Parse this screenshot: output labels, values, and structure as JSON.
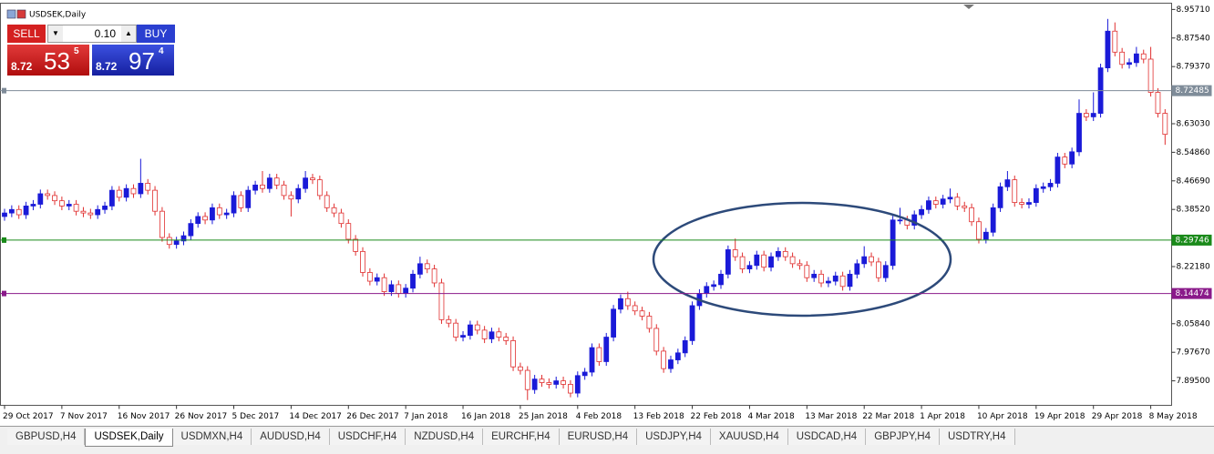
{
  "symbol_label": "USDSEK,Daily",
  "trade_panel": {
    "sell": "SELL",
    "buy": "BUY",
    "lot": "0.10",
    "sell_quote": [
      "8.72",
      "53",
      "5"
    ],
    "buy_quote": [
      "8.72",
      "97",
      "4"
    ]
  },
  "tabs": [
    "GBPUSD,H4",
    "USDSEK,Daily",
    "USDMXN,H4",
    "AUDUSD,H4",
    "USDCHF,H4",
    "NZDUSD,H4",
    "EURCHF,H4",
    "EURUSD,H4",
    "USDJPY,H4",
    "XAUUSD,H4",
    "USDCAD,H4",
    "GBPJPY,H4",
    "USDTRY,H4"
  ],
  "active_tab": 1,
  "chart_data": {
    "type": "candlestick",
    "up_color": "#1a1ad8",
    "down_color": "#e03030",
    "ylim": [
      7.825,
      8.975
    ],
    "yticks": [
      {
        "value": 8.9571,
        "label": "8.95710"
      },
      {
        "value": 8.8754,
        "label": "8.87540"
      },
      {
        "value": 8.7937,
        "label": "8.79370"
      },
      {
        "value": 8.6303,
        "label": "8.63030"
      },
      {
        "value": 8.5486,
        "label": "8.54860"
      },
      {
        "value": 8.4669,
        "label": "8.46690"
      },
      {
        "value": 8.3852,
        "label": "8.38520"
      },
      {
        "value": 8.2218,
        "label": "8.22180"
      },
      {
        "value": 8.0584,
        "label": "8.05840"
      },
      {
        "value": 7.9767,
        "label": "7.97670"
      },
      {
        "value": 7.895,
        "label": "7.89500"
      }
    ],
    "hlines": [
      {
        "value": 8.72485,
        "color": "#7f8c99"
      },
      {
        "value": 8.29746,
        "color": "#1a8a1a"
      },
      {
        "value": 8.14474,
        "color": "#8a1a8a"
      }
    ],
    "categories": [
      "29 Oct 2017",
      null,
      null,
      null,
      null,
      null,
      null,
      null,
      "7 Nov 2017",
      null,
      null,
      null,
      null,
      null,
      null,
      null,
      "16 Nov 2017",
      null,
      null,
      null,
      null,
      null,
      null,
      null,
      "26 Nov 2017",
      null,
      null,
      null,
      null,
      null,
      null,
      null,
      "5 Dec 2017",
      null,
      null,
      null,
      null,
      null,
      null,
      null,
      "14 Dec 2017",
      null,
      null,
      null,
      null,
      null,
      null,
      null,
      "26 Dec 2017",
      null,
      null,
      null,
      null,
      null,
      null,
      null,
      "7 Jan 2018",
      null,
      null,
      null,
      null,
      null,
      null,
      null,
      "16 Jan 2018",
      null,
      null,
      null,
      null,
      null,
      null,
      null,
      "25 Jan 2018",
      null,
      null,
      null,
      null,
      null,
      null,
      null,
      "4 Feb 2018",
      null,
      null,
      null,
      null,
      null,
      null,
      null,
      "13 Feb 2018",
      null,
      null,
      null,
      null,
      null,
      null,
      null,
      "22 Feb 2018",
      null,
      null,
      null,
      null,
      null,
      null,
      null,
      "4 Mar 2018",
      null,
      null,
      null,
      null,
      null,
      null,
      null,
      "13 Mar 2018",
      null,
      null,
      null,
      null,
      null,
      null,
      null,
      "22 Mar 2018",
      null,
      null,
      null,
      null,
      null,
      null,
      null,
      "1 Apr 2018",
      null,
      null,
      null,
      null,
      null,
      null,
      null,
      "10 Apr 2018",
      null,
      null,
      null,
      null,
      null,
      null,
      null,
      "19 Apr 2018",
      null,
      null,
      null,
      null,
      null,
      null,
      null,
      "29 Apr 2018",
      null,
      null,
      null,
      null,
      null,
      null,
      null,
      "8 May 2018",
      null,
      null
    ],
    "open": [
      8.365,
      8.375,
      8.385,
      8.37,
      8.395,
      8.4,
      8.43,
      8.425,
      8.41,
      8.395,
      8.4,
      8.38,
      8.375,
      8.37,
      8.385,
      8.395,
      8.44,
      8.42,
      8.445,
      8.43,
      8.46,
      8.44,
      8.38,
      8.305,
      8.285,
      8.295,
      8.31,
      8.345,
      8.365,
      8.355,
      8.39,
      8.37,
      8.375,
      8.425,
      8.39,
      8.44,
      8.455,
      8.445,
      8.475,
      8.455,
      8.425,
      8.415,
      8.445,
      8.475,
      8.47,
      8.425,
      8.39,
      8.375,
      8.345,
      8.3,
      8.265,
      8.205,
      8.18,
      8.19,
      8.15,
      8.17,
      8.145,
      8.16,
      8.2,
      8.23,
      8.215,
      8.175,
      8.07,
      8.06,
      8.02,
      8.025,
      8.055,
      8.04,
      8.015,
      8.035,
      8.02,
      8.01,
      7.935,
      7.925,
      7.87,
      7.9,
      7.89,
      7.885,
      7.895,
      7.885,
      7.86,
      7.91,
      7.92,
      7.99,
      7.95,
      8.02,
      8.1,
      8.13,
      8.11,
      8.095,
      8.08,
      8.045,
      7.98,
      7.93,
      7.955,
      7.975,
      8.01,
      8.11,
      8.145,
      8.165,
      8.17,
      8.2,
      8.27,
      8.25,
      8.215,
      8.225,
      8.255,
      8.22,
      8.25,
      8.265,
      8.25,
      8.23,
      8.225,
      8.19,
      8.2,
      8.175,
      8.18,
      8.195,
      8.165,
      8.2,
      8.23,
      8.25,
      8.235,
      8.19,
      8.225,
      8.355,
      8.355,
      8.34,
      8.37,
      8.385,
      8.41,
      8.4,
      8.415,
      8.42,
      8.395,
      8.39,
      8.35,
      8.3,
      8.32,
      8.39,
      8.45,
      8.47,
      8.405,
      8.4,
      8.405,
      8.445,
      8.45,
      8.46,
      8.535,
      8.515,
      8.55,
      8.66,
      8.65,
      8.66,
      8.79,
      8.895,
      8.835,
      8.8,
      8.805,
      8.83,
      8.815,
      8.72,
      8.66
    ],
    "high": [
      8.387,
      8.397,
      8.397,
      8.407,
      8.412,
      8.442,
      8.442,
      8.437,
      8.422,
      8.412,
      8.412,
      8.392,
      8.387,
      8.397,
      8.407,
      8.452,
      8.452,
      8.457,
      8.457,
      8.53,
      8.472,
      8.452,
      8.392,
      8.317,
      8.307,
      8.322,
      8.357,
      8.377,
      8.377,
      8.402,
      8.402,
      8.387,
      8.437,
      8.437,
      8.452,
      8.467,
      8.495,
      8.487,
      8.487,
      8.467,
      8.437,
      8.457,
      8.495,
      8.487,
      8.482,
      8.437,
      8.402,
      8.387,
      8.357,
      8.312,
      8.277,
      8.217,
      8.202,
      8.202,
      8.182,
      8.182,
      8.172,
      8.212,
      8.25,
      8.242,
      8.227,
      8.187,
      8.082,
      8.072,
      8.037,
      8.067,
      8.067,
      8.052,
      8.047,
      8.047,
      8.032,
      8.022,
      7.947,
      7.937,
      7.912,
      7.912,
      7.902,
      7.907,
      7.907,
      7.897,
      7.922,
      7.932,
      8.002,
      8.002,
      8.032,
      8.112,
      8.142,
      8.15,
      8.122,
      8.107,
      8.092,
      8.057,
      7.992,
      7.967,
      7.987,
      8.022,
      8.122,
      8.157,
      8.177,
      8.182,
      8.212,
      8.282,
      8.302,
      8.262,
      8.237,
      8.267,
      8.267,
      8.262,
      8.277,
      8.277,
      8.262,
      8.242,
      8.237,
      8.212,
      8.212,
      8.192,
      8.207,
      8.207,
      8.212,
      8.242,
      8.28,
      8.262,
      8.247,
      8.237,
      8.367,
      8.39,
      8.367,
      8.382,
      8.397,
      8.422,
      8.422,
      8.427,
      8.445,
      8.432,
      8.407,
      8.402,
      8.362,
      8.332,
      8.402,
      8.462,
      8.495,
      8.482,
      8.417,
      8.417,
      8.457,
      8.462,
      8.472,
      8.547,
      8.547,
      8.562,
      8.7,
      8.672,
      8.72,
      8.802,
      8.93,
      8.92,
      8.847,
      8.817,
      8.85,
      8.842,
      8.85,
      8.732,
      8.672
    ],
    "low": [
      8.353,
      8.363,
      8.358,
      8.358,
      8.383,
      8.388,
      8.413,
      8.398,
      8.383,
      8.383,
      8.368,
      8.363,
      8.358,
      8.358,
      8.373,
      8.383,
      8.408,
      8.408,
      8.418,
      8.418,
      8.428,
      8.368,
      8.293,
      8.273,
      8.273,
      8.283,
      8.298,
      8.333,
      8.343,
      8.343,
      8.358,
      8.358,
      8.363,
      8.378,
      8.378,
      8.428,
      8.433,
      8.433,
      8.443,
      8.413,
      8.365,
      8.403,
      8.433,
      8.458,
      8.413,
      8.378,
      8.363,
      8.333,
      8.288,
      8.253,
      8.193,
      8.168,
      8.168,
      8.138,
      8.138,
      8.133,
      8.133,
      8.148,
      8.188,
      8.203,
      8.163,
      8.058,
      8.048,
      8.008,
      8.008,
      8.013,
      8.028,
      8.003,
      8.003,
      8.008,
      7.998,
      7.923,
      7.913,
      7.84,
      7.858,
      7.878,
      7.873,
      7.873,
      7.873,
      7.848,
      7.848,
      7.898,
      7.908,
      7.938,
      7.938,
      8.008,
      8.088,
      8.098,
      8.083,
      8.068,
      8.033,
      7.968,
      7.918,
      7.918,
      7.943,
      7.963,
      7.998,
      8.098,
      8.133,
      8.153,
      8.158,
      8.188,
      8.238,
      8.203,
      8.203,
      8.213,
      8.208,
      8.208,
      8.238,
      8.238,
      8.218,
      8.213,
      8.178,
      8.178,
      8.163,
      8.163,
      8.168,
      8.153,
      8.153,
      8.188,
      8.218,
      8.223,
      8.178,
      8.178,
      8.213,
      8.343,
      8.328,
      8.328,
      8.358,
      8.373,
      8.388,
      8.388,
      8.403,
      8.383,
      8.378,
      8.338,
      8.288,
      8.288,
      8.308,
      8.378,
      8.438,
      8.393,
      8.388,
      8.388,
      8.393,
      8.433,
      8.438,
      8.448,
      8.503,
      8.503,
      8.538,
      8.638,
      8.638,
      8.648,
      8.778,
      8.823,
      8.788,
      8.788,
      8.793,
      8.803,
      8.708,
      8.648,
      8.57
    ],
    "close": [
      8.375,
      8.385,
      8.37,
      8.395,
      8.4,
      8.43,
      8.425,
      8.41,
      8.395,
      8.4,
      8.38,
      8.375,
      8.37,
      8.385,
      8.395,
      8.44,
      8.42,
      8.445,
      8.43,
      8.46,
      8.44,
      8.38,
      8.305,
      8.285,
      8.295,
      8.31,
      8.345,
      8.365,
      8.355,
      8.39,
      8.37,
      8.375,
      8.425,
      8.39,
      8.44,
      8.455,
      8.445,
      8.475,
      8.455,
      8.425,
      8.415,
      8.445,
      8.475,
      8.47,
      8.425,
      8.39,
      8.375,
      8.345,
      8.3,
      8.265,
      8.205,
      8.18,
      8.19,
      8.15,
      8.17,
      8.145,
      8.16,
      8.2,
      8.23,
      8.215,
      8.175,
      8.07,
      8.06,
      8.02,
      8.025,
      8.055,
      8.04,
      8.015,
      8.035,
      8.02,
      8.01,
      7.935,
      7.925,
      7.87,
      7.9,
      7.89,
      7.885,
      7.895,
      7.885,
      7.86,
      7.91,
      7.92,
      7.99,
      7.95,
      8.02,
      8.1,
      8.13,
      8.11,
      8.095,
      8.08,
      8.045,
      7.98,
      7.93,
      7.955,
      7.975,
      8.01,
      8.11,
      8.145,
      8.165,
      8.17,
      8.2,
      8.27,
      8.25,
      8.215,
      8.225,
      8.255,
      8.22,
      8.25,
      8.265,
      8.25,
      8.23,
      8.225,
      8.19,
      8.2,
      8.175,
      8.18,
      8.195,
      8.165,
      8.2,
      8.23,
      8.25,
      8.235,
      8.19,
      8.225,
      8.355,
      8.355,
      8.34,
      8.37,
      8.385,
      8.41,
      8.4,
      8.415,
      8.42,
      8.395,
      8.39,
      8.35,
      8.3,
      8.32,
      8.39,
      8.45,
      8.47,
      8.405,
      8.4,
      8.405,
      8.445,
      8.45,
      8.46,
      8.535,
      8.515,
      8.55,
      8.66,
      8.65,
      8.66,
      8.79,
      8.895,
      8.835,
      8.8,
      8.805,
      8.83,
      8.815,
      8.72,
      8.66,
      8.6
    ]
  }
}
